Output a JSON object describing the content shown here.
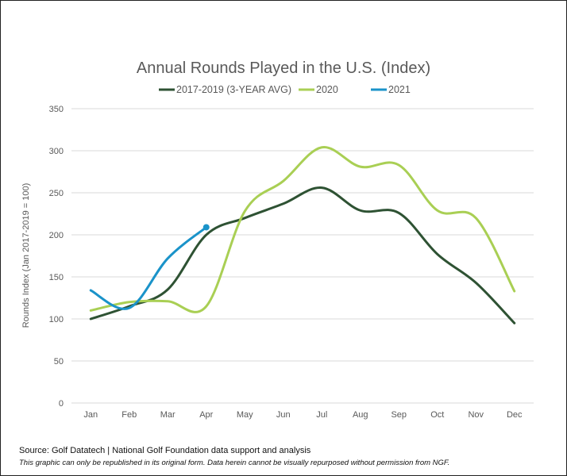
{
  "chart_data": {
    "type": "line",
    "title": "Annual Rounds Played in the U.S. (Index)",
    "xlabel": "",
    "ylabel": "Rounds Index (Jan 2017-2019 = 100)",
    "categories": [
      "Jan",
      "Feb",
      "Mar",
      "Apr",
      "May",
      "Jun",
      "Jul",
      "Aug",
      "Sep",
      "Oct",
      "Nov",
      "Dec"
    ],
    "yticks": [
      "0",
      "50",
      "100",
      "150",
      "200",
      "250",
      "300",
      "350"
    ],
    "ylim": [
      0,
      350
    ],
    "grid": true,
    "legend_position": "top",
    "series": [
      {
        "name": "2017-2019 (3-YEAR AVG)",
        "color": "#2e5233",
        "values": [
          100,
          115,
          135,
          200,
          220,
          237,
          256,
          229,
          226,
          177,
          143,
          95
        ]
      },
      {
        "name": "2020",
        "color": "#a9cf54",
        "values": [
          110,
          120,
          121,
          115,
          228,
          264,
          304,
          281,
          283,
          229,
          220,
          133
        ]
      },
      {
        "name": "2021",
        "color": "#1a93c9",
        "values": [
          134,
          113,
          172,
          209
        ],
        "end_marker": true
      }
    ]
  },
  "footer": {
    "source": "Source: Golf Datatech | National Golf Foundation data support and analysis",
    "disclaimer": "This graphic can only be republished in its original form. Data herein cannot be visually repurposed without permission from NGF."
  }
}
